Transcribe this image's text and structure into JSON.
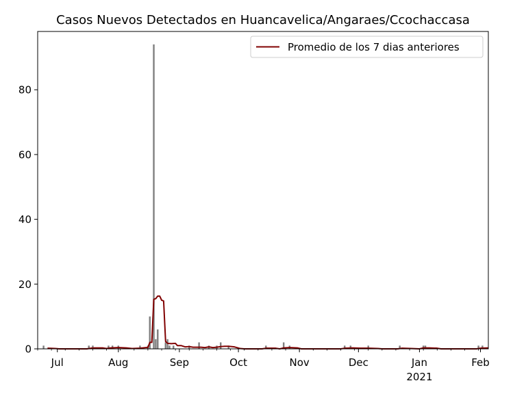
{
  "chart_data": {
    "type": "bar",
    "title": "Casos Nuevos Detectados en Huancavelica/Angaraes/Ccochaccasa",
    "xlabel": "",
    "ylabel": "",
    "xlim": [
      "2020-06-21",
      "2021-02-05"
    ],
    "ylim": [
      0,
      98
    ],
    "yticks": [
      0,
      20,
      40,
      60,
      80
    ],
    "xticks": [
      {
        "date": "2020-07-01",
        "label": "Jul"
      },
      {
        "date": "2020-08-01",
        "label": "Aug"
      },
      {
        "date": "2020-09-01",
        "label": "Sep"
      },
      {
        "date": "2020-10-01",
        "label": "Oct"
      },
      {
        "date": "2020-11-01",
        "label": "Nov"
      },
      {
        "date": "2020-12-01",
        "label": "Dec"
      },
      {
        "date": "2021-01-01",
        "label": "Jan",
        "sublabel": "2021"
      },
      {
        "date": "2021-02-01",
        "label": "Feb"
      }
    ],
    "bar_color": "#808080",
    "line_color": "#800000",
    "bars": [
      {
        "date": "2020-06-24",
        "value": 1
      },
      {
        "date": "2020-07-17",
        "value": 1
      },
      {
        "date": "2020-07-19",
        "value": 1
      },
      {
        "date": "2020-07-27",
        "value": 1
      },
      {
        "date": "2020-07-29",
        "value": 1
      },
      {
        "date": "2020-08-01",
        "value": 1
      },
      {
        "date": "2020-08-12",
        "value": 1
      },
      {
        "date": "2020-08-16",
        "value": 1
      },
      {
        "date": "2020-08-17",
        "value": 10
      },
      {
        "date": "2020-08-19",
        "value": 94
      },
      {
        "date": "2020-08-20",
        "value": 3
      },
      {
        "date": "2020-08-21",
        "value": 6
      },
      {
        "date": "2020-08-25",
        "value": 2
      },
      {
        "date": "2020-08-26",
        "value": 3
      },
      {
        "date": "2020-08-27",
        "value": 1
      },
      {
        "date": "2020-08-29",
        "value": 1
      },
      {
        "date": "2020-09-06",
        "value": 1
      },
      {
        "date": "2020-09-11",
        "value": 2
      },
      {
        "date": "2020-09-16",
        "value": 1
      },
      {
        "date": "2020-09-20",
        "value": 1
      },
      {
        "date": "2020-09-22",
        "value": 2
      },
      {
        "date": "2020-09-26",
        "value": 1
      },
      {
        "date": "2020-10-15",
        "value": 1
      },
      {
        "date": "2020-10-24",
        "value": 2
      },
      {
        "date": "2020-10-27",
        "value": 1
      },
      {
        "date": "2020-11-24",
        "value": 1
      },
      {
        "date": "2020-11-27",
        "value": 1
      },
      {
        "date": "2020-12-06",
        "value": 1
      },
      {
        "date": "2020-12-22",
        "value": 1
      },
      {
        "date": "2021-01-03",
        "value": 1
      },
      {
        "date": "2021-01-04",
        "value": 1
      },
      {
        "date": "2021-01-31",
        "value": 1
      },
      {
        "date": "2021-02-02",
        "value": 1
      }
    ],
    "series": [
      {
        "name": "Promedio de los 7 dias anteriores",
        "points": [
          [
            "2020-06-26",
            0.2
          ],
          [
            "2020-06-30",
            0.1
          ],
          [
            "2020-07-02",
            0.0
          ],
          [
            "2020-07-16",
            0.0
          ],
          [
            "2020-07-18",
            0.2
          ],
          [
            "2020-07-20",
            0.3
          ],
          [
            "2020-07-24",
            0.3
          ],
          [
            "2020-07-26",
            0.1
          ],
          [
            "2020-07-28",
            0.3
          ],
          [
            "2020-08-01",
            0.4
          ],
          [
            "2020-08-05",
            0.3
          ],
          [
            "2020-08-08",
            0.1
          ],
          [
            "2020-08-12",
            0.2
          ],
          [
            "2020-08-15",
            0.4
          ],
          [
            "2020-08-16",
            0.4
          ],
          [
            "2020-08-17",
            2.0
          ],
          [
            "2020-08-18",
            2.0
          ],
          [
            "2020-08-19",
            15.3
          ],
          [
            "2020-08-20",
            15.5
          ],
          [
            "2020-08-21",
            16.3
          ],
          [
            "2020-08-22",
            16.3
          ],
          [
            "2020-08-23",
            15.0
          ],
          [
            "2020-08-24",
            14.8
          ],
          [
            "2020-08-25",
            2.3
          ],
          [
            "2020-08-26",
            1.7
          ],
          [
            "2020-08-28",
            1.6
          ],
          [
            "2020-08-30",
            1.7
          ],
          [
            "2020-08-31",
            1.0
          ],
          [
            "2020-09-02",
            1.0
          ],
          [
            "2020-09-04",
            0.6
          ],
          [
            "2020-09-06",
            0.7
          ],
          [
            "2020-09-08",
            0.5
          ],
          [
            "2020-09-10",
            0.5
          ],
          [
            "2020-09-12",
            0.5
          ],
          [
            "2020-09-14",
            0.4
          ],
          [
            "2020-09-16",
            0.6
          ],
          [
            "2020-09-18",
            0.4
          ],
          [
            "2020-09-20",
            0.5
          ],
          [
            "2020-09-22",
            0.7
          ],
          [
            "2020-09-24",
            0.8
          ],
          [
            "2020-09-26",
            0.8
          ],
          [
            "2020-09-29",
            0.6
          ],
          [
            "2020-10-02",
            0.1
          ],
          [
            "2020-10-04",
            0.0
          ],
          [
            "2020-10-13",
            0.0
          ],
          [
            "2020-10-15",
            0.2
          ],
          [
            "2020-10-20",
            0.2
          ],
          [
            "2020-10-22",
            0.0
          ],
          [
            "2020-10-24",
            0.3
          ],
          [
            "2020-10-27",
            0.4
          ],
          [
            "2020-10-31",
            0.3
          ],
          [
            "2020-11-02",
            0.0
          ],
          [
            "2020-11-22",
            0.0
          ],
          [
            "2020-11-24",
            0.2
          ],
          [
            "2020-11-28",
            0.3
          ],
          [
            "2020-12-02",
            0.2
          ],
          [
            "2020-12-06",
            0.2
          ],
          [
            "2020-12-11",
            0.1
          ],
          [
            "2020-12-13",
            0.0
          ],
          [
            "2020-12-21",
            0.0
          ],
          [
            "2020-12-23",
            0.2
          ],
          [
            "2020-12-28",
            0.1
          ],
          [
            "2021-01-01",
            0.0
          ],
          [
            "2021-01-03",
            0.3
          ],
          [
            "2021-01-06",
            0.3
          ],
          [
            "2021-01-10",
            0.2
          ],
          [
            "2021-01-12",
            0.0
          ],
          [
            "2021-01-30",
            0.0
          ],
          [
            "2021-02-01",
            0.2
          ],
          [
            "2021-02-05",
            0.3
          ]
        ]
      }
    ],
    "legend": {
      "position": "top-right"
    },
    "grid": false
  }
}
